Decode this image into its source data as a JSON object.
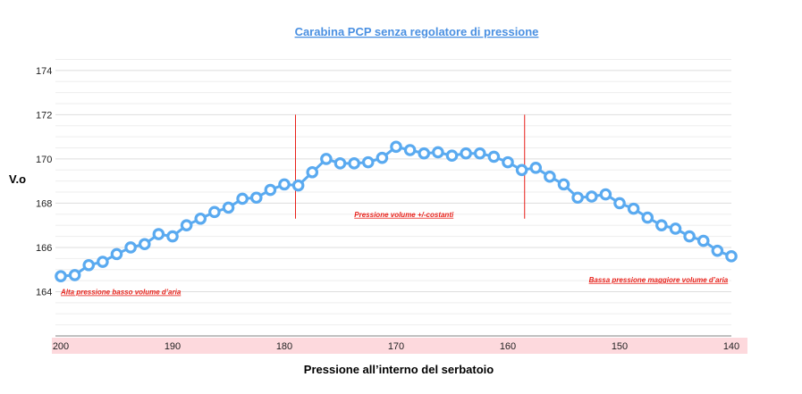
{
  "chart_data": {
    "type": "line",
    "title": "Carabina PCP senza regolatore di pressione",
    "xlabel": "Pressione all’interno del serbatoio",
    "ylabel": "V.o",
    "xlim": [
      200,
      140
    ],
    "ylim": [
      162,
      174.6
    ],
    "x_ticks": [
      "200",
      "190",
      "180",
      "170",
      "160",
      "150",
      "140"
    ],
    "x_tick_values": [
      200,
      190,
      180,
      170,
      160,
      150,
      140
    ],
    "y_ticks": [
      "174",
      "172",
      "170",
      "168",
      "166",
      "164"
    ],
    "y_tick_values": [
      174,
      172,
      170,
      168,
      166,
      164
    ],
    "grid": true,
    "series": [
      {
        "color": "#5aaaf0",
        "x": [
          200,
          198.75,
          197.5,
          196.25,
          195,
          193.75,
          192.5,
          191.25,
          190,
          188.75,
          187.5,
          186.25,
          185,
          183.75,
          182.5,
          181.25,
          180,
          178.75,
          177.5,
          176.25,
          175,
          173.75,
          172.5,
          171.25,
          170,
          168.75,
          167.5,
          166.25,
          165,
          163.75,
          162.5,
          161.25,
          160,
          158.75,
          157.5,
          156.25,
          155,
          153.75,
          152.5,
          151.25,
          150,
          148.75,
          147.5,
          146.25,
          145,
          143.75,
          142.5,
          141.25,
          140
        ],
        "y": [
          164.7,
          164.75,
          165.2,
          165.35,
          165.7,
          166.0,
          166.15,
          166.6,
          166.5,
          167.0,
          167.3,
          167.6,
          167.8,
          168.2,
          168.25,
          168.6,
          168.85,
          168.8,
          169.4,
          170.0,
          169.8,
          169.8,
          169.85,
          170.05,
          170.55,
          170.4,
          170.25,
          170.3,
          170.15,
          170.25,
          170.25,
          170.1,
          169.85,
          169.5,
          169.6,
          169.2,
          168.85,
          168.25,
          168.3,
          168.4,
          168.0,
          167.75,
          167.35,
          167.0,
          166.85,
          166.5,
          166.3,
          165.85,
          165.6
        ]
      }
    ],
    "markers": [
      {
        "x": 179,
        "y_from": 167.3,
        "y_to": 172.0,
        "color": "#e8211a"
      },
      {
        "x": 158.5,
        "y_from": 167.3,
        "y_to": 172.0,
        "color": "#e8211a"
      }
    ],
    "annotations": [
      {
        "text": "Alta pressione basso volume d’aria",
        "x": 200,
        "y": 164.0,
        "anchor": "start"
      },
      {
        "text": "Pressione volume +/-costanti",
        "x": 169.3,
        "y": 167.5,
        "anchor": "middle"
      },
      {
        "text": "Bassa pressione maggiore volume d’aria",
        "x": 140.3,
        "y": 164.55,
        "anchor": "end"
      }
    ],
    "highlight_band_color": "#fdd9dd"
  }
}
